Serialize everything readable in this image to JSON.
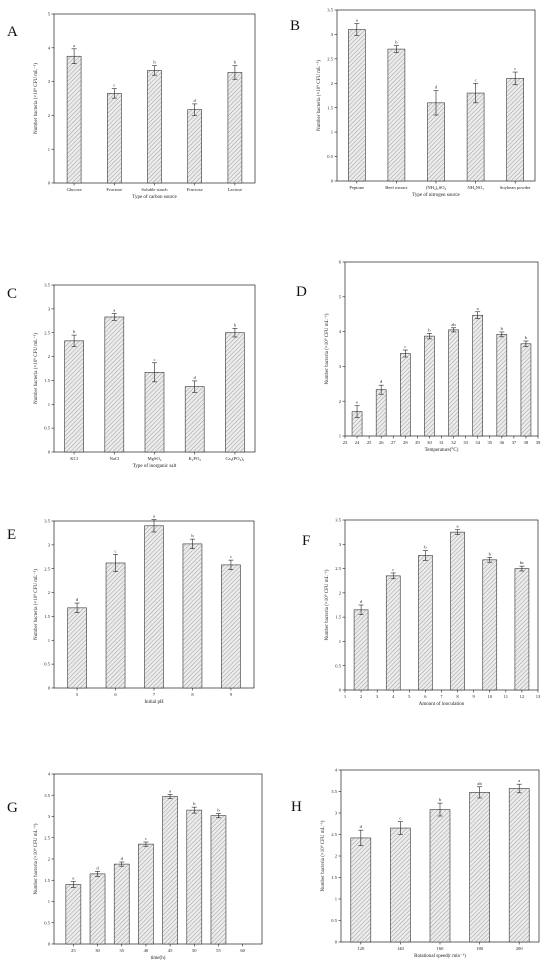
{
  "ylabel": "Number bacteria (×10⁹ CFU mL⁻¹)",
  "chart_data": [
    {
      "id": "A",
      "type": "bar",
      "panel_label": "A",
      "categories": [
        "Glucose",
        "Fructose",
        "Soluble starch",
        "Fructose",
        "Lactose"
      ],
      "values": [
        3.75,
        2.65,
        3.33,
        2.17,
        3.27
      ],
      "errors": [
        0.22,
        0.14,
        0.14,
        0.17,
        0.2
      ],
      "letters": [
        "a",
        "c",
        "b",
        "d",
        "b"
      ],
      "ylim": [
        0,
        5
      ],
      "yticks": [
        0,
        1,
        2,
        3,
        4,
        5
      ],
      "xlabel": "Type of carbon source"
    },
    {
      "id": "B",
      "type": "bar",
      "panel_label": "B",
      "categories": [
        "Peptone",
        "Beef extract",
        "(NH4)2SO4",
        "NH4NO3",
        "Soybean powder"
      ],
      "values": [
        3.1,
        2.7,
        1.6,
        1.8,
        2.1
      ],
      "errors": [
        0.12,
        0.07,
        0.25,
        0.2,
        0.13
      ],
      "letters": [
        "a",
        "b",
        "d",
        "c",
        "c"
      ],
      "ylim": [
        0,
        3.5
      ],
      "yticks": [
        0,
        0.5,
        1.0,
        1.5,
        2.0,
        2.5,
        3.0,
        3.5
      ],
      "xlabel": "Type of nitrogen source"
    },
    {
      "id": "C",
      "type": "bar",
      "panel_label": "C",
      "categories": [
        "KCl",
        "NaCl",
        "MgSO4",
        "K2PO4",
        "Ca3(PO4)2"
      ],
      "values": [
        2.33,
        2.83,
        1.67,
        1.37,
        2.5
      ],
      "errors": [
        0.12,
        0.07,
        0.2,
        0.12,
        0.09
      ],
      "letters": [
        "b",
        "a",
        "c",
        "d",
        "b"
      ],
      "ylim": [
        0,
        3.5
      ],
      "yticks": [
        0,
        0.5,
        1.0,
        1.5,
        2.0,
        2.5,
        3.0,
        3.5
      ],
      "xlabel": "Type of inorganic salt"
    },
    {
      "id": "D",
      "type": "bar",
      "panel_label": "D",
      "x": [
        24,
        26,
        28,
        30,
        32,
        34,
        36,
        38
      ],
      "values": [
        1.7,
        2.33,
        3.37,
        3.87,
        4.05,
        4.47,
        3.92,
        3.65
      ],
      "errors": [
        0.17,
        0.13,
        0.1,
        0.08,
        0.06,
        0.1,
        0.07,
        0.08
      ],
      "letters": [
        "e",
        "d",
        "c",
        "b",
        "ab",
        "a",
        "b",
        "b"
      ],
      "ylim": [
        1,
        6
      ],
      "yticks": [
        1,
        2,
        3,
        4,
        5,
        6
      ],
      "xlim": [
        23,
        39
      ],
      "xticks": [
        23,
        24,
        25,
        26,
        27,
        28,
        29,
        30,
        31,
        32,
        33,
        34,
        35,
        36,
        37,
        38,
        39
      ],
      "xlabel": "Temperature(°C)"
    },
    {
      "id": "E",
      "type": "bar",
      "panel_label": "E",
      "x": [
        5,
        6,
        7,
        8,
        9
      ],
      "values": [
        1.68,
        2.62,
        3.4,
        3.02,
        2.58
      ],
      "errors": [
        0.1,
        0.18,
        0.13,
        0.1,
        0.1
      ],
      "letters": [
        "d",
        "c",
        "a",
        "b",
        "c"
      ],
      "ylim": [
        0,
        3.5
      ],
      "yticks": [
        0,
        0.5,
        1.0,
        1.5,
        2.0,
        2.5,
        3.0,
        3.5
      ],
      "xlim": [
        4.4,
        9.6
      ],
      "xticks": [
        5,
        6,
        7,
        8,
        9
      ],
      "xlabel": "Initial pH"
    },
    {
      "id": "F",
      "type": "bar",
      "panel_label": "F",
      "x": [
        2,
        4,
        6,
        8,
        10,
        12
      ],
      "values": [
        1.65,
        2.35,
        2.77,
        3.25,
        2.68,
        2.5
      ],
      "errors": [
        0.1,
        0.06,
        0.1,
        0.05,
        0.05,
        0.05
      ],
      "letters": [
        "d",
        "c",
        "b",
        "a",
        "b",
        "bc"
      ],
      "ylim": [
        0,
        3.5
      ],
      "yticks": [
        0,
        0.5,
        1.0,
        1.5,
        2.0,
        2.5,
        3.0,
        3.5
      ],
      "xlim": [
        1,
        13
      ],
      "xticks": [
        1,
        2,
        3,
        4,
        5,
        6,
        7,
        8,
        9,
        10,
        11,
        12,
        13
      ],
      "xlabel": "Amount of inoculation"
    },
    {
      "id": "G",
      "type": "bar",
      "panel_label": "G",
      "x": [
        25,
        30,
        35,
        40,
        45,
        50,
        55,
        60
      ],
      "values": [
        1.4,
        1.65,
        1.88,
        2.35,
        3.47,
        3.15,
        3.02,
        null
      ],
      "errors": [
        0.07,
        0.06,
        0.05,
        0.05,
        0.05,
        0.07,
        0.05,
        0
      ],
      "letters": [
        "e",
        "d",
        "d",
        "c",
        "a",
        "b",
        "b",
        ""
      ],
      "ylim": [
        0,
        4.0
      ],
      "yticks": [
        0,
        0.5,
        1.0,
        1.5,
        2.0,
        2.5,
        3.0,
        3.5,
        4.0
      ],
      "xlim": [
        21,
        64
      ],
      "xticks": [
        25,
        30,
        35,
        40,
        45,
        50,
        55,
        60
      ],
      "xlabel": "time(h)"
    },
    {
      "id": "H",
      "type": "bar",
      "panel_label": "H",
      "x": [
        120,
        140,
        160,
        180,
        200
      ],
      "values": [
        2.42,
        2.65,
        3.08,
        3.48,
        3.57
      ],
      "errors": [
        0.18,
        0.15,
        0.15,
        0.13,
        0.1
      ],
      "letters": [
        "d",
        "c",
        "b",
        "ab",
        "a"
      ],
      "ylim": [
        0,
        4.0
      ],
      "yticks": [
        0,
        0.5,
        1.0,
        1.5,
        2.0,
        2.5,
        3.0,
        3.5,
        4.0
      ],
      "xlim": [
        110,
        210
      ],
      "xticks": [
        120,
        140,
        160,
        180,
        200
      ],
      "xlabel": "Rotational speed(r min⁻¹)"
    }
  ]
}
